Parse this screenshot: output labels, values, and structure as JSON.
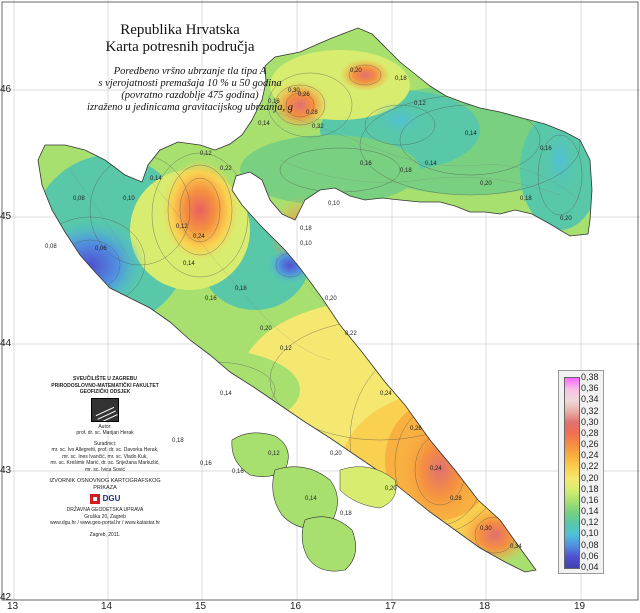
{
  "title": {
    "line1": "Republika Hrvatska",
    "line2": "Karta potresnih područja"
  },
  "subtitle": [
    "Poredbeno vršno ubrzanje tla tipa A",
    "s vjerojatnosti premašaja 10 % u 50 godina",
    "(povratno razdoblje 475 godina)",
    "izraženo u jedinicama gravitacijskog ubrzanja, g"
  ],
  "axes": {
    "x_ticks": [
      "13",
      "14",
      "15",
      "16",
      "17",
      "18",
      "19"
    ],
    "y_ticks": [
      "46",
      "45",
      "44",
      "43",
      "42"
    ]
  },
  "legend": {
    "values": [
      "0,38",
      "0,36",
      "0,34",
      "0,32",
      "0,30",
      "0,28",
      "0,26",
      "0,24",
      "0,22",
      "0,20",
      "0,18",
      "0,16",
      "0,14",
      "0,12",
      "0,10",
      "0,08",
      "0,06",
      "0,04"
    ],
    "colors": [
      "#ff66ff",
      "#f7c0e6",
      "#f0d8d8",
      "#e8b0a8",
      "#e07070",
      "#f07050",
      "#f59040",
      "#f8b040",
      "#fad050",
      "#f5e870",
      "#d8ec70",
      "#a8e070",
      "#78d080",
      "#58c8a8",
      "#50c0d8",
      "#5090e0",
      "#5050d0",
      "#4040b0"
    ]
  },
  "contour_labels": [
    "0,26",
    "0,28",
    "0,16",
    "0,14",
    "0,20",
    "0,18",
    "0,12",
    "0,10",
    "0,22",
    "0,24",
    "0,30",
    "0,32",
    "0,08",
    "0,08",
    "0,06",
    "0,10",
    "0,12",
    "0,14",
    "0,16",
    "0,18",
    "0,20",
    "0,22",
    "0,24",
    "0,26",
    "0,14",
    "0,16",
    "0,18",
    "0,20",
    "0,12",
    "0,14",
    "0,18",
    "0,20",
    "0,24",
    "0,28",
    "0,30",
    "0,34",
    "0,20",
    "0,16",
    "0,12",
    "0,14",
    "0,18",
    "0,20",
    "0,14",
    "0,18",
    "0,16",
    "0,12",
    "0,10",
    "0,14",
    "0,16",
    "0,18",
    "0,20"
  ],
  "credits": {
    "institution": [
      "SVEUČILIŠTE U ZAGREBU",
      "PRIRODOSLOVNO-MATEMATIČKI FAKULTET",
      "GEOFIZIČKI ODSJEK"
    ],
    "author_hd": "Autor:",
    "author": "prof. dr. sc. Marijan Herak",
    "collab_hd": "Suradnici:",
    "collab": [
      "mr. sc. Ivo Allegretti, prof. dr. sc. Davorka Herak,",
      "mr. sc. Ines Ivančić, mr. sc. Vlado Kuk,",
      "mr. sc. Krešimir Marić, dr. sc. Snježana Markušić,",
      "mr. sc. Ivica Sović"
    ],
    "carto": "IZVORNIK OSNOVNOG KARTOGRAFSKOG PRIKAZA",
    "dgu": "DGU",
    "agency": [
      "DRŽAVNA GEODETSKA UPRAVA",
      "Gruška 20, Zagreb",
      "www.dgu.hr / www.geo-portal.hr / www.katastar.hr"
    ],
    "place_date": "Zagreb, 2011."
  }
}
